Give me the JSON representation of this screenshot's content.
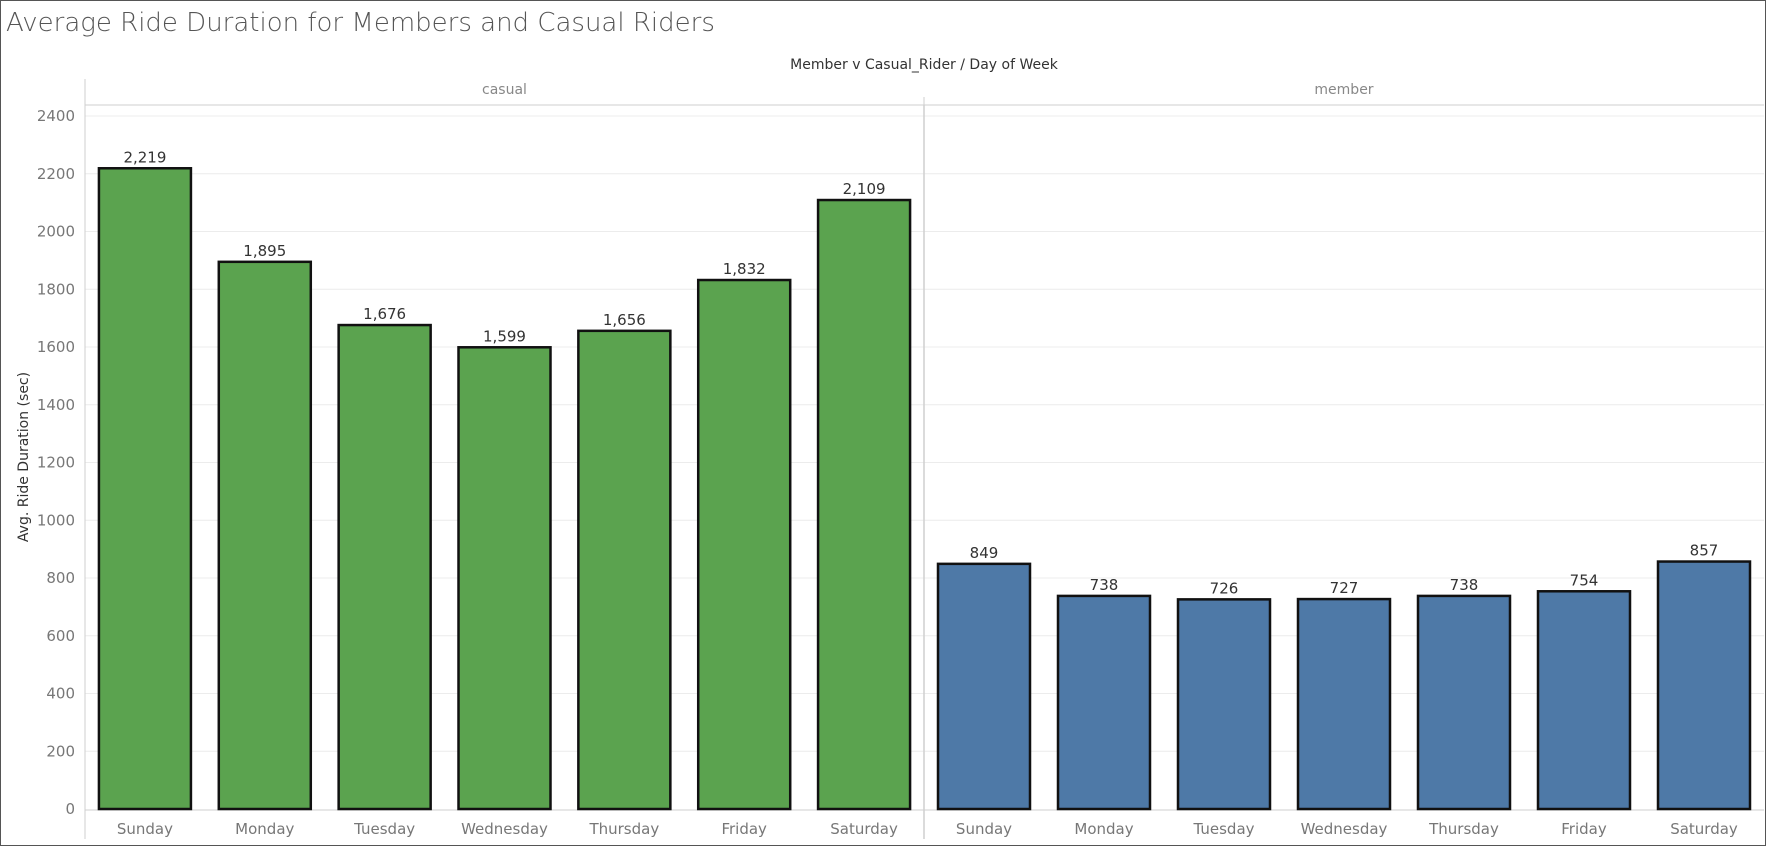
{
  "chart_data": {
    "type": "bar",
    "title": "Average Ride Duration for Members and Casual Riders",
    "column_header": "Member v Casual_Rider  /  Day of Week",
    "ylabel": "Avg. Ride Duration (sec)",
    "ylim": [
      0,
      2400
    ],
    "yticks": [
      "0",
      "200",
      "400",
      "600",
      "800",
      "1000",
      "1200",
      "1400",
      "1600",
      "1800",
      "2000",
      "2200",
      "2400"
    ],
    "grid": true,
    "categories": [
      "Sunday",
      "Monday",
      "Tuesday",
      "Wednesday",
      "Thursday",
      "Friday",
      "Saturday"
    ],
    "panels": [
      {
        "name": "casual",
        "color": "#5ba34f",
        "values": [
          2219,
          1895,
          1676,
          1599,
          1656,
          1832,
          2109
        ],
        "labels": [
          "2,219",
          "1,895",
          "1,676",
          "1,599",
          "1,656",
          "1,832",
          "2,109"
        ]
      },
      {
        "name": "member",
        "color": "#4e79a7",
        "values": [
          849,
          738,
          726,
          727,
          738,
          754,
          857
        ],
        "labels": [
          "849",
          "738",
          "726",
          "727",
          "738",
          "754",
          "857"
        ]
      }
    ]
  }
}
